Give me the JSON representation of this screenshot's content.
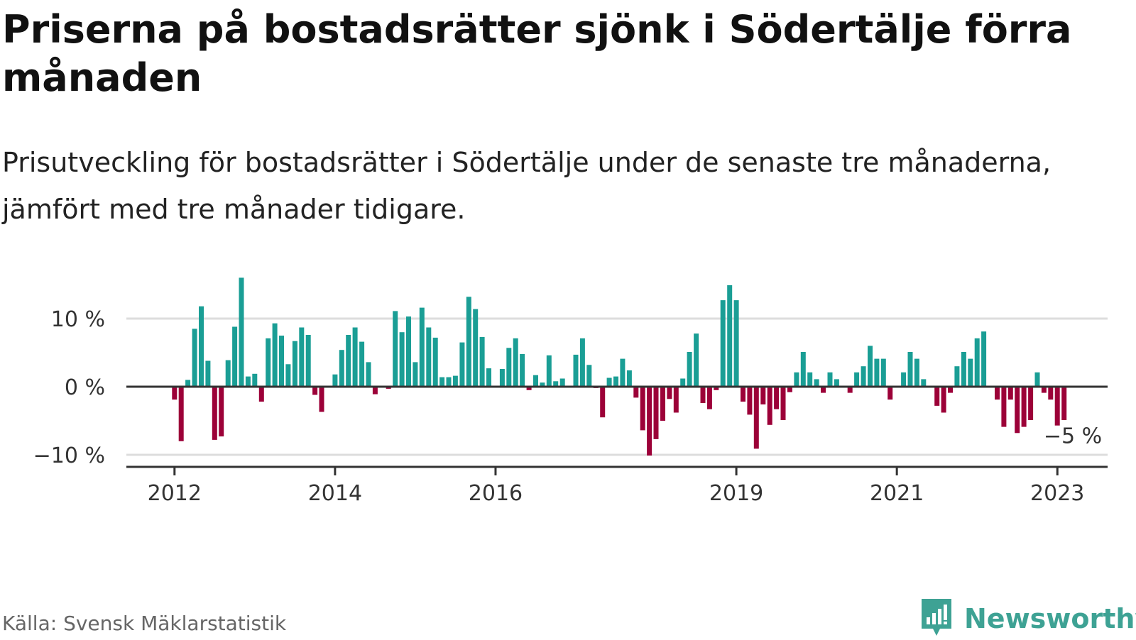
{
  "header": {
    "title": "Priserna på bostadsrätter sjönk i Södertälje förra månaden",
    "subtitle": "Prisutveckling för bostadsrätter i Södertälje under de senaste tre månaderna, jämfört med tre månader tidigare."
  },
  "footer": {
    "source": "Källa: Svensk Mäklarstatistik",
    "brand": "Newsworthy",
    "brand_icon": "bar-chart-icon"
  },
  "colors": {
    "positive": "#1a9e95",
    "negative": "#9c0138",
    "brand": "#3ea294",
    "zero_line": "#333333",
    "grid": "#dddddd"
  },
  "chart_data": {
    "type": "bar",
    "title": "Priserna på bostadsrätter sjönk i Södertälje förra månaden",
    "subtitle": "Prisutveckling för bostadsrätter i Södertälje under de senaste tre månaderna, jämfört med tre månader tidigare.",
    "xlabel": "",
    "ylabel": "",
    "unit": "%",
    "ylim": [
      -11,
      16
    ],
    "yticks": [
      {
        "value": -10,
        "label": "−10 %"
      },
      {
        "value": 0,
        "label": "0 %"
      },
      {
        "value": 10,
        "label": "10 %"
      }
    ],
    "xticks": [
      {
        "date": "2012-01",
        "label": "2012"
      },
      {
        "date": "2014-01",
        "label": "2014"
      },
      {
        "date": "2016-01",
        "label": "2016"
      },
      {
        "date": "2019-01",
        "label": "2019"
      },
      {
        "date": "2021-01",
        "label": "2021"
      },
      {
        "date": "2023-01",
        "label": "2023"
      }
    ],
    "grid": true,
    "annotation": {
      "date": "2023-03",
      "label": "−5 %"
    },
    "series": [
      {
        "values": [
          {
            "date": "2012-01",
            "value": -1.9
          },
          {
            "date": "2012-02",
            "value": -8.0
          },
          {
            "date": "2012-03",
            "value": 1.0
          },
          {
            "date": "2012-04",
            "value": 8.5
          },
          {
            "date": "2012-05",
            "value": 11.8
          },
          {
            "date": "2012-06",
            "value": 3.8
          },
          {
            "date": "2012-07",
            "value": -7.8
          },
          {
            "date": "2012-08",
            "value": -7.3
          },
          {
            "date": "2012-09",
            "value": 3.9
          },
          {
            "date": "2012-10",
            "value": 8.8
          },
          {
            "date": "2012-11",
            "value": 16.0
          },
          {
            "date": "2012-12",
            "value": 1.5
          },
          {
            "date": "2013-01",
            "value": 1.9
          },
          {
            "date": "2013-02",
            "value": -2.2
          },
          {
            "date": "2013-03",
            "value": 7.1
          },
          {
            "date": "2013-04",
            "value": 9.3
          },
          {
            "date": "2013-05",
            "value": 7.5
          },
          {
            "date": "2013-06",
            "value": 3.3
          },
          {
            "date": "2013-07",
            "value": 6.7
          },
          {
            "date": "2013-08",
            "value": 8.7
          },
          {
            "date": "2013-09",
            "value": 7.6
          },
          {
            "date": "2013-10",
            "value": -1.2
          },
          {
            "date": "2013-11",
            "value": -3.7
          },
          {
            "date": "2013-12",
            "value": 0.0
          },
          {
            "date": "2014-01",
            "value": 1.8
          },
          {
            "date": "2014-02",
            "value": 5.4
          },
          {
            "date": "2014-03",
            "value": 7.6
          },
          {
            "date": "2014-04",
            "value": 8.7
          },
          {
            "date": "2014-05",
            "value": 6.6
          },
          {
            "date": "2014-06",
            "value": 3.6
          },
          {
            "date": "2014-07",
            "value": -1.1
          },
          {
            "date": "2014-08",
            "value": 0.0
          },
          {
            "date": "2014-09",
            "value": -0.3
          },
          {
            "date": "2014-10",
            "value": 11.1
          },
          {
            "date": "2014-11",
            "value": 8.0
          },
          {
            "date": "2014-12",
            "value": 10.3
          },
          {
            "date": "2015-01",
            "value": 3.6
          },
          {
            "date": "2015-02",
            "value": 11.6
          },
          {
            "date": "2015-03",
            "value": 8.7
          },
          {
            "date": "2015-04",
            "value": 7.2
          },
          {
            "date": "2015-05",
            "value": 1.4
          },
          {
            "date": "2015-06",
            "value": 1.4
          },
          {
            "date": "2015-07",
            "value": 1.6
          },
          {
            "date": "2015-08",
            "value": 6.5
          },
          {
            "date": "2015-09",
            "value": 13.2
          },
          {
            "date": "2015-10",
            "value": 11.4
          },
          {
            "date": "2015-11",
            "value": 7.3
          },
          {
            "date": "2015-12",
            "value": 2.7
          },
          {
            "date": "2016-01",
            "value": 0.0
          },
          {
            "date": "2016-02",
            "value": 2.6
          },
          {
            "date": "2016-03",
            "value": 5.7
          },
          {
            "date": "2016-04",
            "value": 7.1
          },
          {
            "date": "2016-05",
            "value": 4.8
          },
          {
            "date": "2016-06",
            "value": -0.5
          },
          {
            "date": "2016-07",
            "value": 1.7
          },
          {
            "date": "2016-08",
            "value": 0.6
          },
          {
            "date": "2016-09",
            "value": 4.6
          },
          {
            "date": "2016-10",
            "value": 0.8
          },
          {
            "date": "2016-11",
            "value": 1.2
          },
          {
            "date": "2016-12",
            "value": 0.0
          },
          {
            "date": "2017-01",
            "value": 4.7
          },
          {
            "date": "2017-02",
            "value": 7.1
          },
          {
            "date": "2017-03",
            "value": 3.2
          },
          {
            "date": "2017-04",
            "value": -0.2
          },
          {
            "date": "2017-05",
            "value": -4.5
          },
          {
            "date": "2017-06",
            "value": 1.3
          },
          {
            "date": "2017-07",
            "value": 1.5
          },
          {
            "date": "2017-08",
            "value": 4.1
          },
          {
            "date": "2017-09",
            "value": 2.4
          },
          {
            "date": "2017-10",
            "value": -1.6
          },
          {
            "date": "2017-11",
            "value": -6.4
          },
          {
            "date": "2017-12",
            "value": -10.1
          },
          {
            "date": "2018-01",
            "value": -7.7
          },
          {
            "date": "2018-02",
            "value": -5.0
          },
          {
            "date": "2018-03",
            "value": -1.8
          },
          {
            "date": "2018-04",
            "value": -3.8
          },
          {
            "date": "2018-05",
            "value": 1.2
          },
          {
            "date": "2018-06",
            "value": 5.1
          },
          {
            "date": "2018-07",
            "value": 7.8
          },
          {
            "date": "2018-08",
            "value": -2.4
          },
          {
            "date": "2018-09",
            "value": -3.3
          },
          {
            "date": "2018-10",
            "value": -0.5
          },
          {
            "date": "2018-11",
            "value": 12.7
          },
          {
            "date": "2018-12",
            "value": 14.9
          },
          {
            "date": "2019-01",
            "value": 12.7
          },
          {
            "date": "2019-02",
            "value": -2.2
          },
          {
            "date": "2019-03",
            "value": -4.1
          },
          {
            "date": "2019-04",
            "value": -9.1
          },
          {
            "date": "2019-05",
            "value": -2.6
          },
          {
            "date": "2019-06",
            "value": -5.6
          },
          {
            "date": "2019-07",
            "value": -3.3
          },
          {
            "date": "2019-08",
            "value": -4.9
          },
          {
            "date": "2019-09",
            "value": -0.8
          },
          {
            "date": "2019-10",
            "value": 2.1
          },
          {
            "date": "2019-11",
            "value": 5.1
          },
          {
            "date": "2019-12",
            "value": 2.1
          },
          {
            "date": "2020-01",
            "value": 1.1
          },
          {
            "date": "2020-02",
            "value": -0.9
          },
          {
            "date": "2020-03",
            "value": 2.1
          },
          {
            "date": "2020-04",
            "value": 1.1
          },
          {
            "date": "2020-05",
            "value": 0.0
          },
          {
            "date": "2020-06",
            "value": -0.9
          },
          {
            "date": "2020-07",
            "value": 2.1
          },
          {
            "date": "2020-08",
            "value": 3.0
          },
          {
            "date": "2020-09",
            "value": 6.0
          },
          {
            "date": "2020-10",
            "value": 4.1
          },
          {
            "date": "2020-11",
            "value": 4.1
          },
          {
            "date": "2020-12",
            "value": -1.9
          },
          {
            "date": "2021-01",
            "value": 0.0
          },
          {
            "date": "2021-02",
            "value": 2.1
          },
          {
            "date": "2021-03",
            "value": 5.1
          },
          {
            "date": "2021-04",
            "value": 4.1
          },
          {
            "date": "2021-05",
            "value": 1.1
          },
          {
            "date": "2021-06",
            "value": 0.0
          },
          {
            "date": "2021-07",
            "value": -2.8
          },
          {
            "date": "2021-08",
            "value": -3.8
          },
          {
            "date": "2021-09",
            "value": -0.9
          },
          {
            "date": "2021-10",
            "value": 3.0
          },
          {
            "date": "2021-11",
            "value": 5.1
          },
          {
            "date": "2021-12",
            "value": 4.1
          },
          {
            "date": "2022-01",
            "value": 7.1
          },
          {
            "date": "2022-02",
            "value": 8.1
          },
          {
            "date": "2022-03",
            "value": 0.0
          },
          {
            "date": "2022-04",
            "value": -1.9
          },
          {
            "date": "2022-05",
            "value": -5.9
          },
          {
            "date": "2022-06",
            "value": -1.9
          },
          {
            "date": "2022-07",
            "value": -6.8
          },
          {
            "date": "2022-08",
            "value": -5.9
          },
          {
            "date": "2022-09",
            "value": -4.9
          },
          {
            "date": "2022-10",
            "value": 2.1
          },
          {
            "date": "2022-11",
            "value": -0.9
          },
          {
            "date": "2022-12",
            "value": -1.9
          },
          {
            "date": "2023-01",
            "value": -5.7
          },
          {
            "date": "2023-02",
            "value": -4.9
          }
        ]
      }
    ]
  }
}
